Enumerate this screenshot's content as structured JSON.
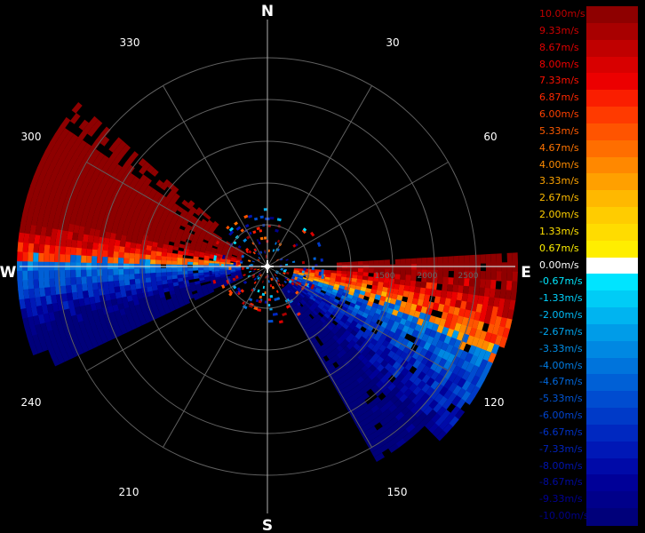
{
  "compass": {
    "north": "N",
    "south": "S",
    "east": "E",
    "west": "W"
  },
  "bearings": [
    "30",
    "60",
    "120",
    "150",
    "210",
    "240",
    "300",
    "330"
  ],
  "range_labels": [
    "1500",
    "2000",
    "2500"
  ],
  "legend": {
    "items": [
      {
        "label": "10.00m/s",
        "color": "#8e0000",
        "text": "#c00000"
      },
      {
        "label": "9.33m/s",
        "color": "#a80000",
        "text": "#d00000"
      },
      {
        "label": "8.67m/s",
        "color": "#c00000",
        "text": "#e00000"
      },
      {
        "label": "8.00m/s",
        "color": "#d80000",
        "text": "#f00000"
      },
      {
        "label": "7.33m/s",
        "color": "#ec0000",
        "text": "#ff1000"
      },
      {
        "label": "6.87m/s",
        "color": "#fa1e00",
        "text": "#ff2800"
      },
      {
        "label": "6.00m/s",
        "color": "#ff3a00",
        "text": "#ff4000"
      },
      {
        "label": "5.33m/s",
        "color": "#ff5400",
        "text": "#ff5a00"
      },
      {
        "label": "4.67m/s",
        "color": "#ff6e00",
        "text": "#ff7400"
      },
      {
        "label": "4.00m/s",
        "color": "#ff8800",
        "text": "#ff8c00"
      },
      {
        "label": "3.33m/s",
        "color": "#ffa000",
        "text": "#ffa400"
      },
      {
        "label": "2.67m/s",
        "color": "#ffb800",
        "text": "#ffbc00"
      },
      {
        "label": "2.00m/s",
        "color": "#ffcc00",
        "text": "#ffd000"
      },
      {
        "label": "1.33m/s",
        "color": "#ffdc00",
        "text": "#ffe000"
      },
      {
        "label": "0.67m/s",
        "color": "#ffee00",
        "text": "#fff000"
      },
      {
        "label": "0.00m/s",
        "color": "#ffffff",
        "text": "#ffffff"
      },
      {
        "label": "-0.67m/s",
        "color": "#00e4ff",
        "text": "#00e8ff"
      },
      {
        "label": "-1.33m/s",
        "color": "#00ccf6",
        "text": "#00d4ff"
      },
      {
        "label": "-2.00m/s",
        "color": "#00b4f0",
        "text": "#00bcf8"
      },
      {
        "label": "-2.67m/s",
        "color": "#009ce8",
        "text": "#00a6f0"
      },
      {
        "label": "-3.33m/s",
        "color": "#0088e2",
        "text": "#0090ea"
      },
      {
        "label": "-4.00m/s",
        "color": "#0074dc",
        "text": "#007ce4"
      },
      {
        "label": "-4.67m/s",
        "color": "#0060d6",
        "text": "#0068de"
      },
      {
        "label": "-5.33m/s",
        "color": "#004cd0",
        "text": "#0056d8"
      },
      {
        "label": "-6.00m/s",
        "color": "#003ac8",
        "text": "#0044d0"
      },
      {
        "label": "-6.67m/s",
        "color": "#0028c0",
        "text": "#0032c8"
      },
      {
        "label": "-7.33m/s",
        "color": "#0018b6",
        "text": "#0022be"
      },
      {
        "label": "-8.00m/s",
        "color": "#000aa8",
        "text": "#0014b0"
      },
      {
        "label": "-8.67m/s",
        "color": "#000098",
        "text": "#000aa0"
      },
      {
        "label": "-9.33m/s",
        "color": "#00008a",
        "text": "#000094"
      },
      {
        "label": "-10.00m/s",
        "color": "#00007a",
        "text": "#000088"
      }
    ]
  }
}
